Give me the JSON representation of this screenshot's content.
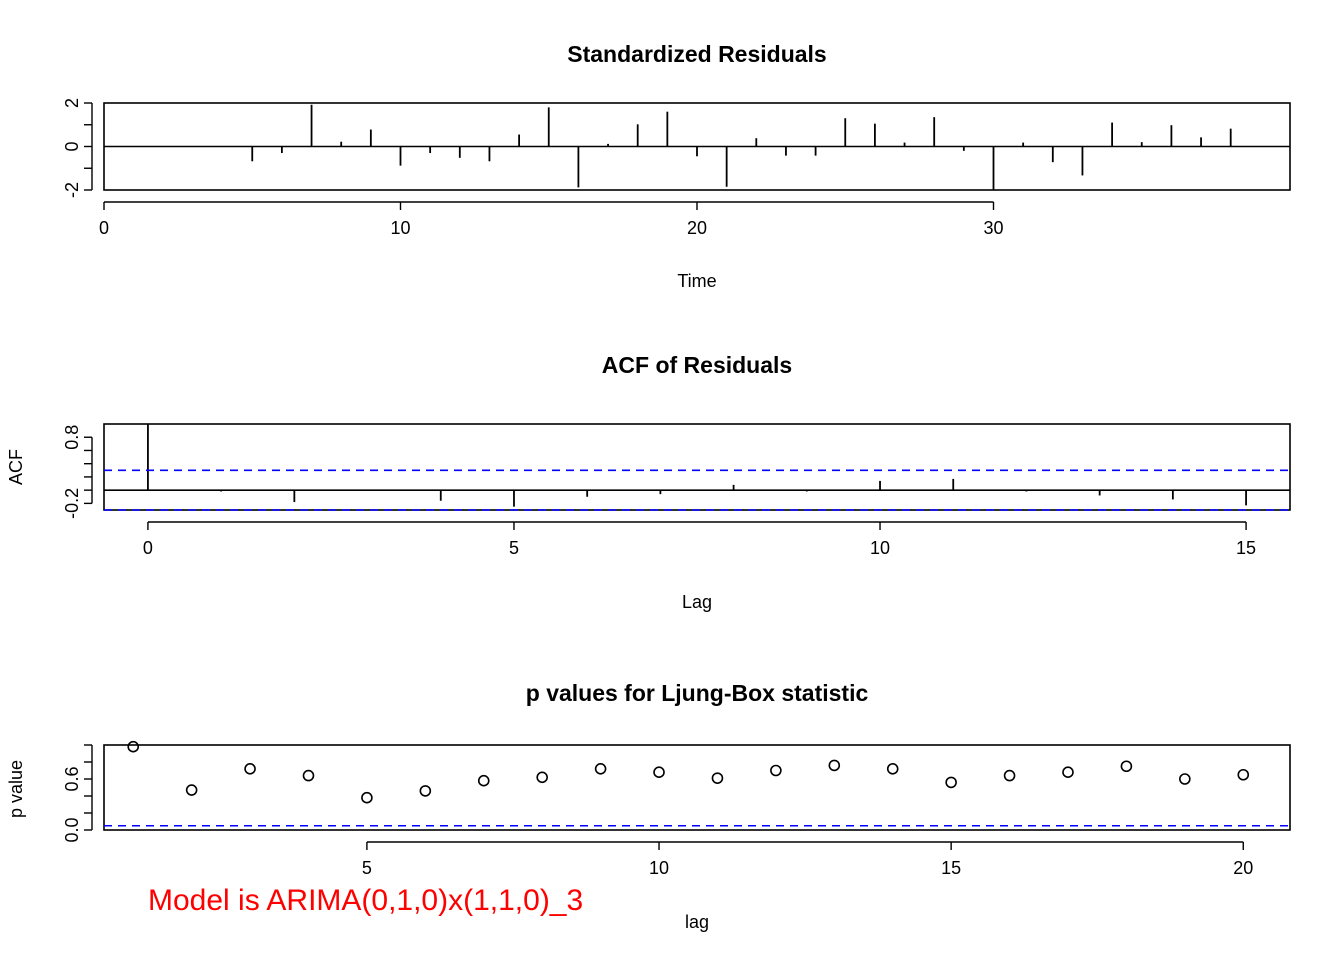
{
  "note": {
    "text": "Model is ARIMA(0,1,0)x(1,1,0)_3",
    "color": "#ff0000"
  },
  "colors": {
    "line": "#000000",
    "bound": "#0000ff"
  },
  "chart_data": [
    {
      "type": "bar",
      "title": "Standardized Residuals",
      "xlabel": "Time",
      "ylabel": "",
      "xlim": [
        0,
        40
      ],
      "ylim": [
        -2,
        2
      ],
      "xticks": [
        0,
        10,
        20,
        30
      ],
      "xtick_labels": [
        "0",
        "10",
        "20",
        "30"
      ],
      "yticks": [
        -2,
        0,
        2
      ],
      "ytick_labels": [
        "-2",
        "0",
        "2"
      ],
      "x": [
        1,
        2,
        3,
        4,
        5,
        6,
        7,
        8,
        9,
        10,
        11,
        12,
        13,
        14,
        15,
        16,
        17,
        18,
        19,
        20,
        21,
        22,
        23,
        24,
        25,
        26,
        27,
        28,
        29,
        30,
        31,
        32,
        33,
        34,
        35,
        36,
        37,
        38
      ],
      "values": [
        0.02,
        0.01,
        0.01,
        0.0,
        -0.68,
        -0.3,
        1.92,
        0.22,
        0.78,
        -0.88,
        -0.3,
        -0.52,
        -0.68,
        0.55,
        1.8,
        -1.88,
        0.12,
        1.02,
        1.6,
        -0.45,
        -1.85,
        0.38,
        -0.42,
        -0.42,
        1.3,
        1.05,
        0.18,
        1.35,
        -0.2,
        -2.0,
        0.18,
        -0.72,
        -1.33,
        1.1,
        0.2,
        0.98,
        0.42,
        0.82
      ]
    },
    {
      "type": "bar",
      "title": "ACF of Residuals",
      "xlabel": "Lag",
      "ylabel": "ACF",
      "xlim": [
        -0.6,
        15.6
      ],
      "ylim": [
        -0.3,
        1.0
      ],
      "xticks": [
        0,
        5,
        10,
        15
      ],
      "xtick_labels": [
        "0",
        "5",
        "10",
        "15"
      ],
      "yticks": [
        -0.2,
        0.8
      ],
      "ytick_labels": [
        "-0.2",
        "0.8"
      ],
      "x": [
        0,
        1,
        2,
        3,
        4,
        5,
        6,
        7,
        8,
        9,
        10,
        11,
        12,
        13,
        14,
        15
      ],
      "values": [
        1.0,
        -0.02,
        -0.18,
        -0.01,
        -0.16,
        -0.25,
        -0.1,
        -0.06,
        0.08,
        -0.02,
        0.14,
        0.17,
        -0.02,
        -0.08,
        -0.14,
        -0.23
      ],
      "bounds": [
        0.3,
        -0.3
      ]
    },
    {
      "type": "scatter",
      "title": "p values for Ljung-Box statistic",
      "xlabel": "lag",
      "ylabel": "p value",
      "xlim": [
        0.5,
        20.8
      ],
      "ylim": [
        0.0,
        1.0
      ],
      "xticks": [
        5,
        10,
        15,
        20
      ],
      "xtick_labels": [
        "5",
        "10",
        "15",
        "20"
      ],
      "yticks": [
        0.0,
        0.6
      ],
      "ytick_labels": [
        "0.0",
        "0.6"
      ],
      "x": [
        1,
        2,
        3,
        4,
        5,
        6,
        7,
        8,
        9,
        10,
        11,
        12,
        13,
        14,
        15,
        16,
        17,
        18,
        19,
        20
      ],
      "values": [
        0.98,
        0.47,
        0.72,
        0.64,
        0.38,
        0.46,
        0.58,
        0.62,
        0.72,
        0.68,
        0.61,
        0.7,
        0.76,
        0.72,
        0.56,
        0.64,
        0.68,
        0.75,
        0.6,
        0.65
      ],
      "bound": 0.05
    }
  ]
}
